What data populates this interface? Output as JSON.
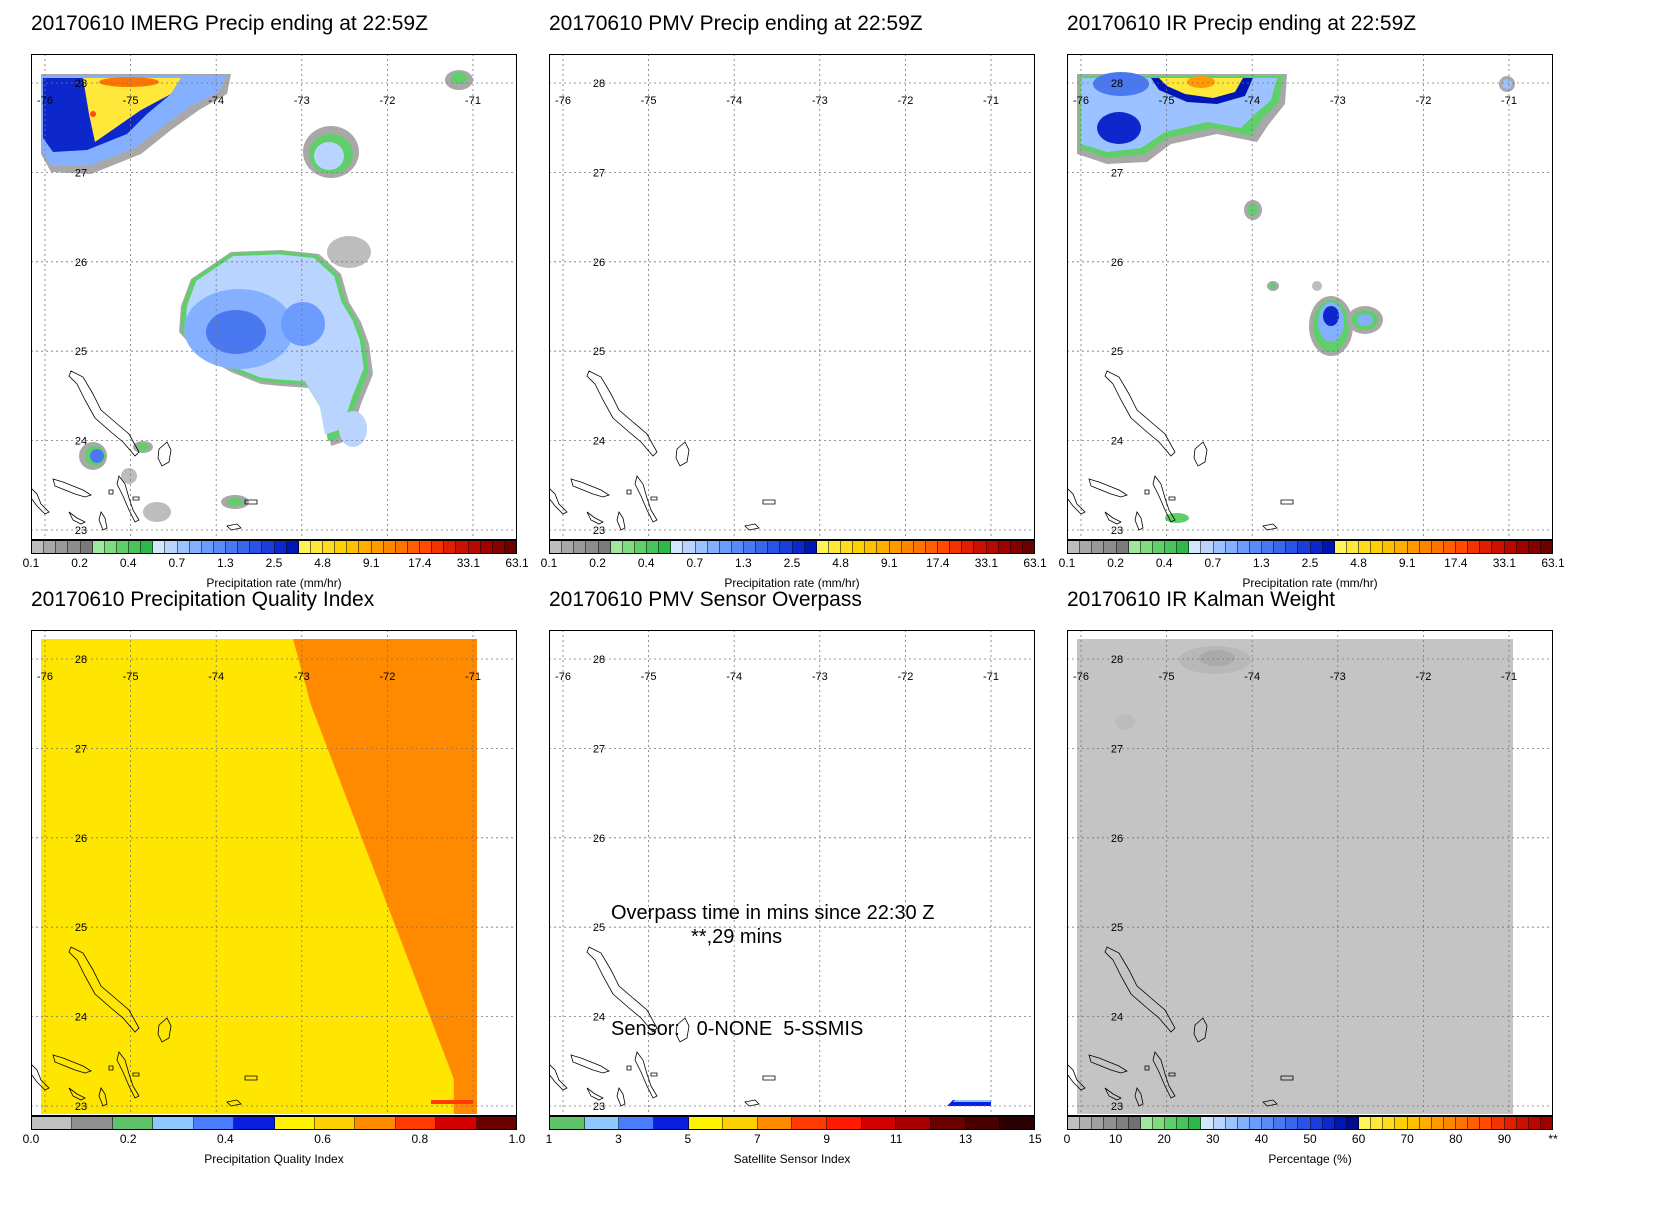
{
  "panels": [
    {
      "id": "imerg",
      "title": "20170610 IMERG Precip ending at 22:59Z",
      "colorbar": {
        "label": "Precipitation rate (mm/hr)",
        "ticks": [
          "0.1",
          "0.2",
          "0.4",
          "0.7",
          "1.3",
          "2.5",
          "4.8",
          "9.1",
          "17.4",
          "33.1",
          "63.1"
        ],
        "colors": [
          "#bdbdbd",
          "#a8a8a8",
          "#999999",
          "#8c8c8c",
          "#7a7a7a",
          "#9ee89e",
          "#7fdc7f",
          "#5fcf6a",
          "#48c45a",
          "#2fb84a",
          "#d3e6ff",
          "#b8d4ff",
          "#9cc2ff",
          "#84b0ff",
          "#6d9cff",
          "#5b8af7",
          "#4a78f0",
          "#3a66ea",
          "#2a52e6",
          "#1a3ddc",
          "#0c28cc",
          "#0016b4",
          "#fff35a",
          "#ffe83a",
          "#ffdc1e",
          "#ffd000",
          "#ffc000",
          "#ffad00",
          "#ff9a00",
          "#ff8600",
          "#ff7300",
          "#ff5f00",
          "#ff4a00",
          "#f23300",
          "#e01e00",
          "#cc1000",
          "#b80800",
          "#a00000",
          "#870000",
          "#6a0000"
        ]
      },
      "field": "imerg"
    },
    {
      "id": "pmv",
      "title": "20170610 PMV Precip ending at 22:59Z",
      "colorbar": {
        "label": "Precipitation rate (mm/hr)",
        "ticks": [
          "0.1",
          "0.2",
          "0.4",
          "0.7",
          "1.3",
          "2.5",
          "4.8",
          "9.1",
          "17.4",
          "33.1",
          "63.1"
        ],
        "colors": [
          "#bdbdbd",
          "#a8a8a8",
          "#999999",
          "#8c8c8c",
          "#7a7a7a",
          "#9ee89e",
          "#7fdc7f",
          "#5fcf6a",
          "#48c45a",
          "#2fb84a",
          "#d3e6ff",
          "#b8d4ff",
          "#9cc2ff",
          "#84b0ff",
          "#6d9cff",
          "#5b8af7",
          "#4a78f0",
          "#3a66ea",
          "#2a52e6",
          "#1a3ddc",
          "#0c28cc",
          "#0016b4",
          "#fff35a",
          "#ffe83a",
          "#ffdc1e",
          "#ffd000",
          "#ffc000",
          "#ffad00",
          "#ff9a00",
          "#ff8600",
          "#ff7300",
          "#ff5f00",
          "#ff4a00",
          "#f23300",
          "#e01e00",
          "#cc1000",
          "#b80800",
          "#a00000",
          "#870000",
          "#6a0000"
        ]
      },
      "field": "none"
    },
    {
      "id": "ir",
      "title": "20170610 IR Precip ending at 22:59Z",
      "colorbar": {
        "label": "Precipitation rate (mm/hr)",
        "ticks": [
          "0.1",
          "0.2",
          "0.4",
          "0.7",
          "1.3",
          "2.5",
          "4.8",
          "9.1",
          "17.4",
          "33.1",
          "63.1"
        ],
        "colors": [
          "#bdbdbd",
          "#a8a8a8",
          "#999999",
          "#8c8c8c",
          "#7a7a7a",
          "#9ee89e",
          "#7fdc7f",
          "#5fcf6a",
          "#48c45a",
          "#2fb84a",
          "#d3e6ff",
          "#b8d4ff",
          "#9cc2ff",
          "#84b0ff",
          "#6d9cff",
          "#5b8af7",
          "#4a78f0",
          "#3a66ea",
          "#2a52e6",
          "#1a3ddc",
          "#0c28cc",
          "#0016b4",
          "#fff35a",
          "#ffe83a",
          "#ffdc1e",
          "#ffd000",
          "#ffc000",
          "#ffad00",
          "#ff9a00",
          "#ff8600",
          "#ff7300",
          "#ff5f00",
          "#ff4a00",
          "#f23300",
          "#e01e00",
          "#cc1000",
          "#b80800",
          "#a00000",
          "#870000",
          "#6a0000"
        ]
      },
      "field": "ir"
    },
    {
      "id": "pqi",
      "title": "20170610 Precipitation Quality Index",
      "colorbar": {
        "label": "Precipitation Quality Index",
        "ticks": [
          "0.0",
          "0.2",
          "0.4",
          "0.6",
          "0.8",
          "1.0"
        ],
        "colors": [
          "#c0c0c0",
          "#909090",
          "#5fc36a",
          "#8fc8ff",
          "#4a7cff",
          "#0a1ee0",
          "#fff200",
          "#ffd000",
          "#ff8a00",
          "#ff3a00",
          "#d40000",
          "#6a0000"
        ]
      },
      "field": "pqi"
    },
    {
      "id": "overpass",
      "title": "20170610 PMV Sensor Overpass",
      "colorbar": {
        "label": "Satellite Sensor Index",
        "ticks": [
          "1",
          "3",
          "5",
          "7",
          "9",
          "11",
          "13",
          "15"
        ],
        "colors": [
          "#5fc36a",
          "#8fc8ff",
          "#4a7cff",
          "#0a1ee0",
          "#fff200",
          "#ffd000",
          "#ff8a00",
          "#ff3a00",
          "#ff1a00",
          "#d40000",
          "#a80000",
          "#6a0000",
          "#4a0000",
          "#2a0000"
        ]
      },
      "field": "overpass",
      "annotations": {
        "overpass_text": "Overpass time in mins since 22:30 Z",
        "overpass_value": "**,29 mins",
        "sensor_text": "Sensor:   0-NONE  5-SSMIS"
      }
    },
    {
      "id": "kalman",
      "title": "20170610 IR Kalman Weight",
      "colorbar": {
        "label": "Percentage (%)",
        "ticks": [
          "0",
          "10",
          "20",
          "30",
          "40",
          "50",
          "60",
          "70",
          "80",
          "90",
          "**"
        ],
        "colors": [
          "#c0c0c0",
          "#b0b0b0",
          "#a0a0a0",
          "#909090",
          "#808080",
          "#707070",
          "#9ee89e",
          "#7fdc7f",
          "#5fcf6a",
          "#48c45a",
          "#2fb84a",
          "#d3e6ff",
          "#b8d4ff",
          "#9cc2ff",
          "#84b0ff",
          "#6d9cff",
          "#5b8af7",
          "#4a78f0",
          "#3a66ea",
          "#2a52e6",
          "#1a3ddc",
          "#0c28cc",
          "#0016b4",
          "#000c8c",
          "#fff35a",
          "#ffe83a",
          "#ffdc1e",
          "#ffd000",
          "#ffc000",
          "#ffad00",
          "#ff9a00",
          "#ff8600",
          "#ff7300",
          "#ff5f00",
          "#ff4a00",
          "#f23300",
          "#e01e00",
          "#cc1000",
          "#b80800",
          "#a00000"
        ]
      },
      "field": "kalman"
    }
  ],
  "map": {
    "lon_labels": [
      "-76",
      "-75",
      "-74",
      "-73",
      "-72",
      "-71"
    ],
    "lat_labels": [
      "28",
      "27",
      "26",
      "25",
      "24",
      "23"
    ]
  }
}
